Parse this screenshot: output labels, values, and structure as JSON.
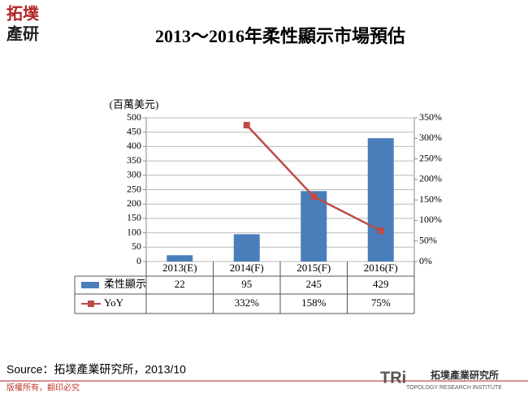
{
  "logo": [
    "拓墣",
    "產研"
  ],
  "chart_data": {
    "type": "bar",
    "title": "2013～2016年柔性顯示市場預估",
    "ylabel": "(百萬美元)",
    "categories": [
      "2013(E)",
      "2014(F)",
      "2015(F)",
      "2016(F)"
    ],
    "series": [
      {
        "name": "柔性顯示",
        "color": "#4a7ebb",
        "values": [
          22,
          95,
          245,
          429
        ]
      },
      {
        "name": "YoY",
        "color": "#be4b48",
        "axis": "y2",
        "type": "line",
        "values": [
          null,
          332,
          158,
          75
        ],
        "value_labels": [
          null,
          "332%",
          "158%",
          "75%"
        ]
      }
    ],
    "ylim": [
      0,
      500
    ],
    "yticks": [
      0,
      50,
      100,
      150,
      200,
      250,
      300,
      350,
      400,
      450,
      500
    ],
    "y2lim": [
      0,
      350
    ],
    "y2ticks": [
      {
        "value": 0,
        "label": "0%"
      },
      {
        "value": 50,
        "label": "50%"
      },
      {
        "value": 100,
        "label": "100%"
      },
      {
        "value": 150,
        "label": "150%"
      },
      {
        "value": 200,
        "label": "200%"
      },
      {
        "value": 250,
        "label": "250%"
      },
      {
        "value": 300,
        "label": "300%"
      },
      {
        "value": 350,
        "label": "350%"
      }
    ],
    "grid": true
  },
  "source": "Source：拓墣產業研究所，2013/10",
  "copyright": "版權所有，翻印必究",
  "footer_logo": {
    "mark": "TRi",
    "name": "拓墣產業研究所",
    "english": "TOPOLOGY RESEARCH INSTITUTE"
  }
}
